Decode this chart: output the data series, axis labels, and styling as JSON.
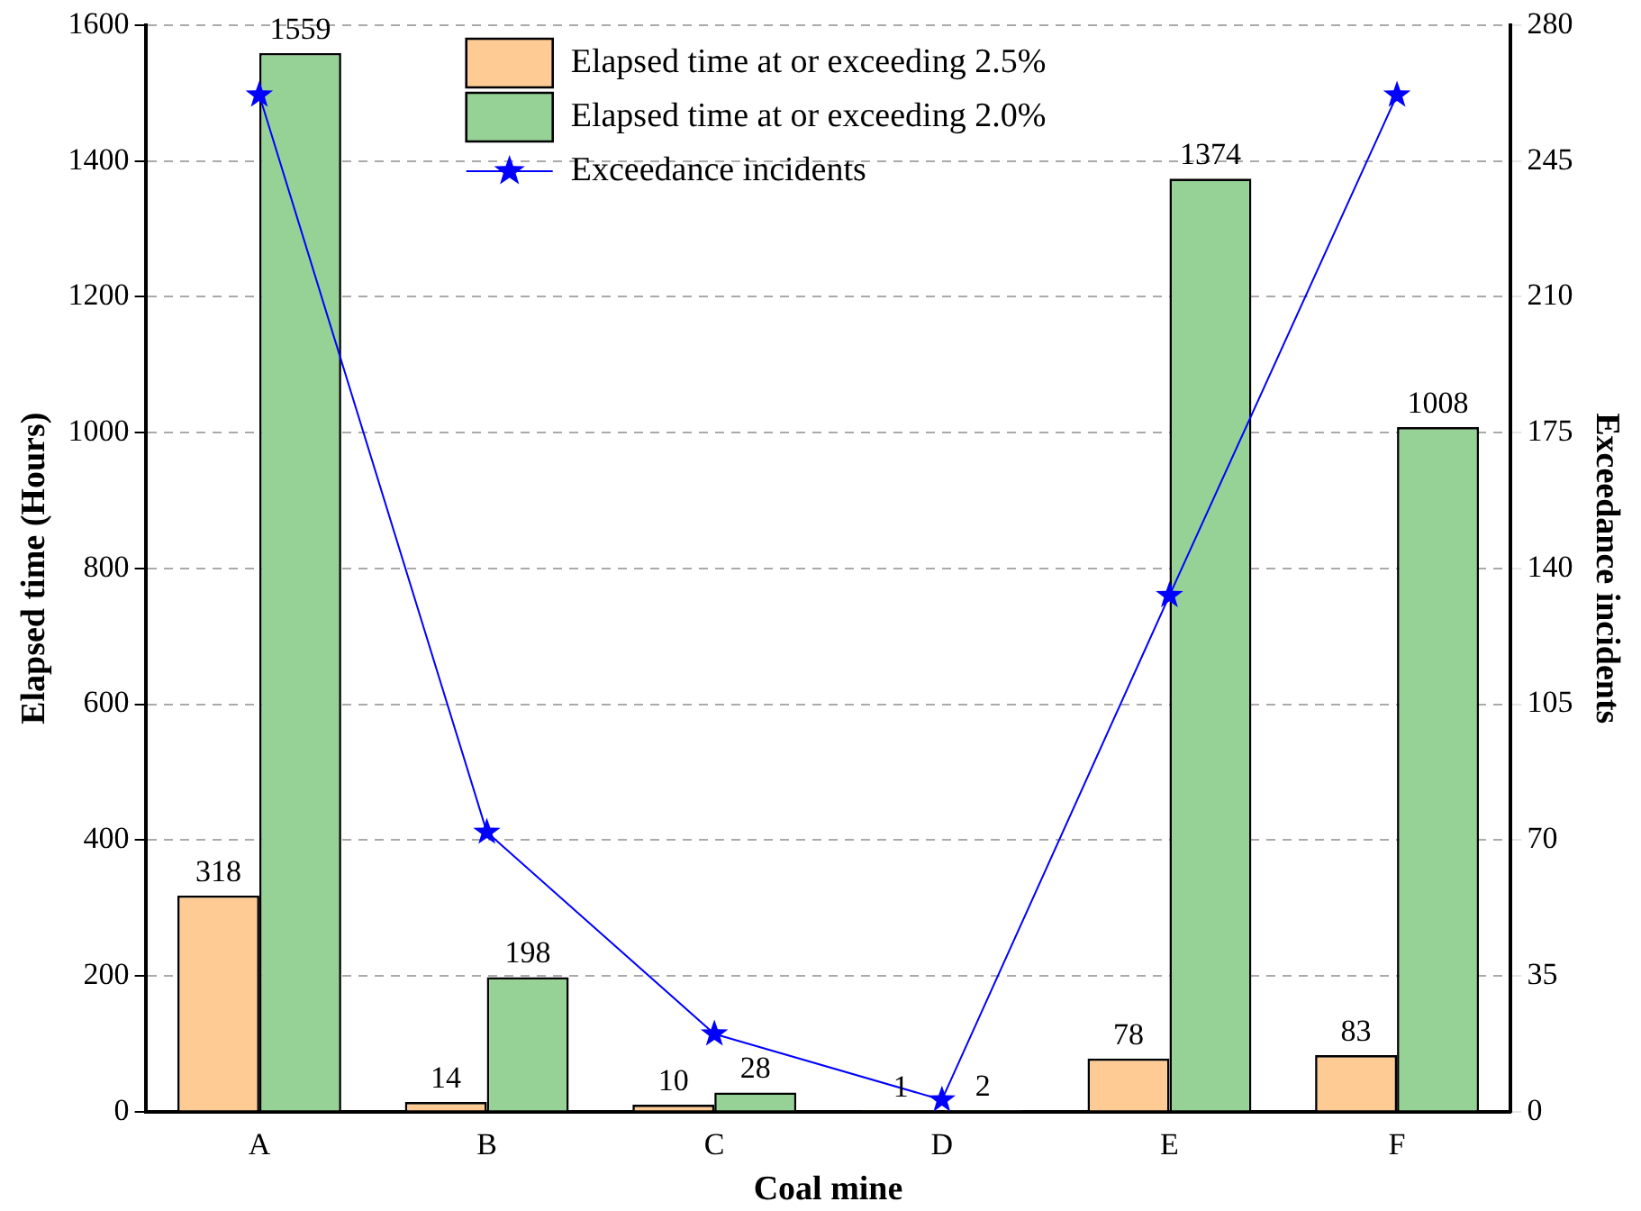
{
  "chart_data": {
    "type": "bar",
    "xlabel": "Coal mine",
    "ylabel": "Elapsed time (Hours)",
    "y2label": "Exceedance incidents",
    "categories": [
      "A",
      "B",
      "C",
      "D",
      "E",
      "F"
    ],
    "series": [
      {
        "name": "Elapsed time at or exceeding 2.5%",
        "color": "#fdcb93",
        "values": [
          318,
          14,
          10,
          1,
          78,
          83
        ],
        "value_labels": [
          "318",
          "14",
          "10",
          "1",
          "78",
          "83"
        ]
      },
      {
        "name": "Elapsed time at or exceeding 2.0%",
        "color": "#96d296",
        "values": [
          1559,
          198,
          28,
          2,
          1374,
          1008
        ],
        "value_labels": [
          "1559",
          "198",
          "28",
          "2",
          "1374",
          "1008"
        ]
      },
      {
        "name": "Exceedance incidents",
        "type": "line",
        "axis": "y2",
        "color": "#0000ff",
        "values": [
          262,
          72,
          20,
          3,
          133,
          262
        ],
        "marker": "star"
      }
    ],
    "ylim": [
      0,
      1600
    ],
    "yticks": [
      0,
      200,
      400,
      600,
      800,
      1000,
      1200,
      1400,
      1600
    ],
    "y2lim": [
      0,
      280
    ],
    "y2ticks": [
      0,
      35,
      70,
      105,
      140,
      175,
      210,
      245,
      280
    ],
    "grid": "y",
    "legend": "top"
  }
}
